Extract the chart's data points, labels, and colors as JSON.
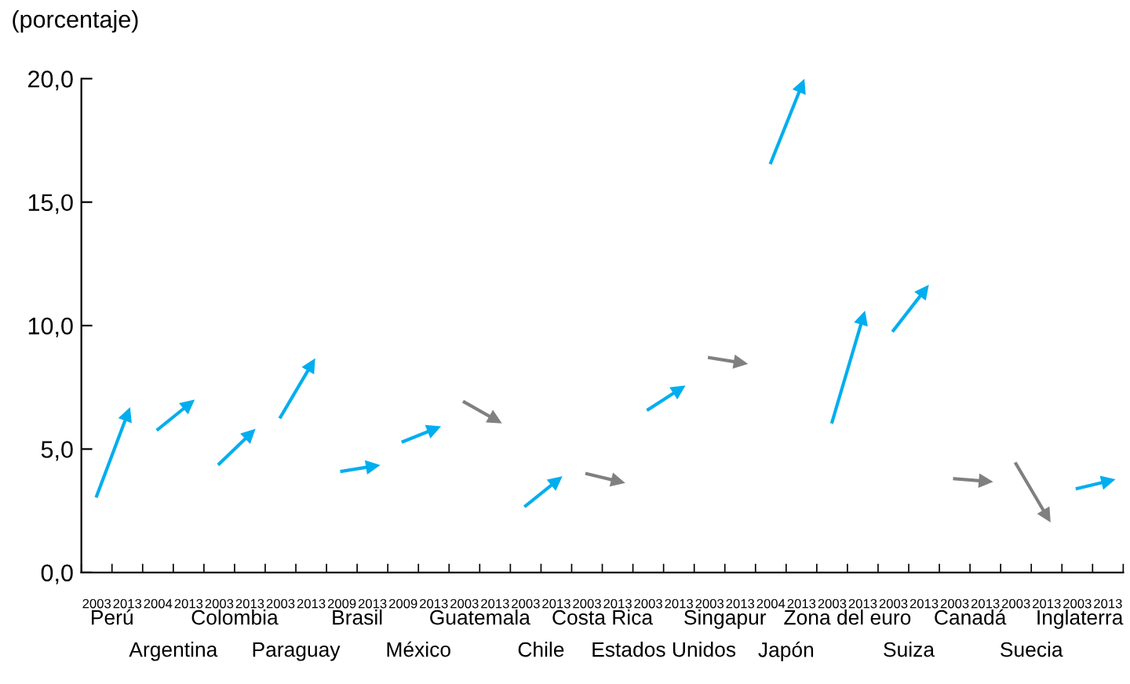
{
  "chart_data": {
    "type": "line",
    "ylabel": "(porcentaje)",
    "categories": [
      "2003",
      "2013",
      "2004",
      "2013",
      "2003",
      "2013",
      "2003",
      "2013",
      "2009",
      "2013",
      "2009",
      "2013",
      "2003",
      "2013",
      "2003",
      "2013",
      "2003",
      "2013",
      "2003",
      "2013",
      "2003",
      "2013",
      "2004",
      "2013",
      "2003",
      "2013",
      "2003",
      "2013",
      "2003",
      "2013",
      "2003",
      "2013",
      "2003",
      "2013"
    ],
    "annotations": [
      "Perú",
      "Argentina",
      "Colombia",
      "Paraguay",
      "Brasil",
      "México",
      "Guatemala",
      "Chile",
      "Costa Rica",
      "Estados Unidos",
      "Singapur",
      "Japón",
      "Zona del euro",
      "Suiza",
      "Canadá",
      "Suecia",
      "Inglaterra"
    ],
    "series": [
      {
        "color": "#00aeef",
        "values": [
          3.1,
          6.4,
          null,
          null,
          null,
          null,
          null,
          null,
          null,
          null,
          null,
          null,
          null,
          null,
          null,
          null,
          null,
          null,
          null,
          null,
          null,
          null,
          null,
          null,
          null,
          null,
          null,
          null,
          null,
          null,
          null,
          null,
          null,
          null
        ]
      },
      {
        "color": "#00aeef",
        "values": [
          null,
          null,
          5.8,
          6.8,
          null,
          null,
          null,
          null,
          null,
          null,
          null,
          null,
          null,
          null,
          null,
          null,
          null,
          null,
          null,
          null,
          null,
          null,
          null,
          null,
          null,
          null,
          null,
          null,
          null,
          null,
          null,
          null,
          null,
          null
        ]
      },
      {
        "color": "#00aeef",
        "values": [
          null,
          null,
          null,
          null,
          4.4,
          5.6,
          null,
          null,
          null,
          null,
          null,
          null,
          null,
          null,
          null,
          null,
          null,
          null,
          null,
          null,
          null,
          null,
          null,
          null,
          null,
          null,
          null,
          null,
          null,
          null,
          null,
          null,
          null,
          null
        ]
      },
      {
        "color": "#00aeef",
        "values": [
          null,
          null,
          null,
          null,
          null,
          null,
          6.3,
          8.4,
          null,
          null,
          null,
          null,
          null,
          null,
          null,
          null,
          null,
          null,
          null,
          null,
          null,
          null,
          null,
          null,
          null,
          null,
          null,
          null,
          null,
          null,
          null,
          null,
          null,
          null
        ]
      },
      {
        "color": "#00aeef",
        "values": [
          null,
          null,
          null,
          null,
          null,
          null,
          null,
          null,
          4.1,
          4.3,
          null,
          null,
          null,
          null,
          null,
          null,
          null,
          null,
          null,
          null,
          null,
          null,
          null,
          null,
          null,
          null,
          null,
          null,
          null,
          null,
          null,
          null,
          null,
          null
        ]
      },
      {
        "color": "#00aeef",
        "values": [
          null,
          null,
          null,
          null,
          null,
          null,
          null,
          null,
          null,
          null,
          5.3,
          5.8,
          null,
          null,
          null,
          null,
          null,
          null,
          null,
          null,
          null,
          null,
          null,
          null,
          null,
          null,
          null,
          null,
          null,
          null,
          null,
          null,
          null,
          null
        ]
      },
      {
        "color": "#808080",
        "values": [
          null,
          null,
          null,
          null,
          null,
          null,
          null,
          null,
          null,
          null,
          null,
          null,
          6.9,
          6.2,
          null,
          null,
          null,
          null,
          null,
          null,
          null,
          null,
          null,
          null,
          null,
          null,
          null,
          null,
          null,
          null,
          null,
          null,
          null,
          null
        ]
      },
      {
        "color": "#00aeef",
        "values": [
          null,
          null,
          null,
          null,
          null,
          null,
          null,
          null,
          null,
          null,
          null,
          null,
          null,
          null,
          2.7,
          3.7,
          null,
          null,
          null,
          null,
          null,
          null,
          null,
          null,
          null,
          null,
          null,
          null,
          null,
          null,
          null,
          null,
          null,
          null
        ]
      },
      {
        "color": "#808080",
        "values": [
          null,
          null,
          null,
          null,
          null,
          null,
          null,
          null,
          null,
          null,
          null,
          null,
          null,
          null,
          null,
          null,
          4.0,
          3.7,
          null,
          null,
          null,
          null,
          null,
          null,
          null,
          null,
          null,
          null,
          null,
          null,
          null,
          null,
          null,
          null
        ]
      },
      {
        "color": "#00aeef",
        "values": [
          null,
          null,
          null,
          null,
          null,
          null,
          null,
          null,
          null,
          null,
          null,
          null,
          null,
          null,
          null,
          null,
          null,
          null,
          6.6,
          7.4,
          null,
          null,
          null,
          null,
          null,
          null,
          null,
          null,
          null,
          null,
          null,
          null,
          null,
          null
        ]
      },
      {
        "color": "#808080",
        "values": [
          null,
          null,
          null,
          null,
          null,
          null,
          null,
          null,
          null,
          null,
          null,
          null,
          null,
          null,
          null,
          null,
          null,
          null,
          null,
          null,
          8.7,
          8.5,
          null,
          null,
          null,
          null,
          null,
          null,
          null,
          null,
          null,
          null,
          null,
          null
        ]
      },
      {
        "color": "#00aeef",
        "values": [
          null,
          null,
          null,
          null,
          null,
          null,
          null,
          null,
          null,
          null,
          null,
          null,
          null,
          null,
          null,
          null,
          null,
          null,
          null,
          null,
          null,
          null,
          16.6,
          19.7,
          null,
          null,
          null,
          null,
          null,
          null,
          null,
          null,
          null,
          null
        ]
      },
      {
        "color": "#00aeef",
        "values": [
          null,
          null,
          null,
          null,
          null,
          null,
          null,
          null,
          null,
          null,
          null,
          null,
          null,
          null,
          null,
          null,
          null,
          null,
          null,
          null,
          null,
          null,
          null,
          null,
          6.1,
          10.3,
          null,
          null,
          null,
          null,
          null,
          null,
          null,
          null
        ]
      },
      {
        "color": "#00aeef",
        "values": [
          null,
          null,
          null,
          null,
          null,
          null,
          null,
          null,
          null,
          null,
          null,
          null,
          null,
          null,
          null,
          null,
          null,
          null,
          null,
          null,
          null,
          null,
          null,
          null,
          null,
          null,
          9.8,
          11.4,
          null,
          null,
          null,
          null,
          null,
          null
        ]
      },
      {
        "color": "#808080",
        "values": [
          null,
          null,
          null,
          null,
          null,
          null,
          null,
          null,
          null,
          null,
          null,
          null,
          null,
          null,
          null,
          null,
          null,
          null,
          null,
          null,
          null,
          null,
          null,
          null,
          null,
          null,
          null,
          null,
          3.8,
          3.7,
          null,
          null,
          null,
          null
        ]
      },
      {
        "color": "#808080",
        "values": [
          null,
          null,
          null,
          null,
          null,
          null,
          null,
          null,
          null,
          null,
          null,
          null,
          null,
          null,
          null,
          null,
          null,
          null,
          null,
          null,
          null,
          null,
          null,
          null,
          null,
          null,
          null,
          null,
          null,
          null,
          4.4,
          2.3,
          null,
          null
        ]
      },
      {
        "color": "#00aeef",
        "values": [
          null,
          null,
          null,
          null,
          null,
          null,
          null,
          null,
          null,
          null,
          null,
          null,
          null,
          null,
          null,
          null,
          null,
          null,
          null,
          null,
          null,
          null,
          null,
          null,
          null,
          null,
          null,
          null,
          null,
          null,
          null,
          null,
          3.4,
          3.7
        ]
      }
    ],
    "ylim": [
      0,
      20
    ],
    "yticks": [
      {
        "value": 0,
        "label": "0,0"
      },
      {
        "value": 5,
        "label": "5,0"
      },
      {
        "value": 10,
        "label": "10,0"
      },
      {
        "value": 15,
        "label": "15,0"
      },
      {
        "value": 20,
        "label": "20,0"
      }
    ],
    "grid": false,
    "legend": false,
    "marker": "triangle",
    "line_style": "solid"
  }
}
